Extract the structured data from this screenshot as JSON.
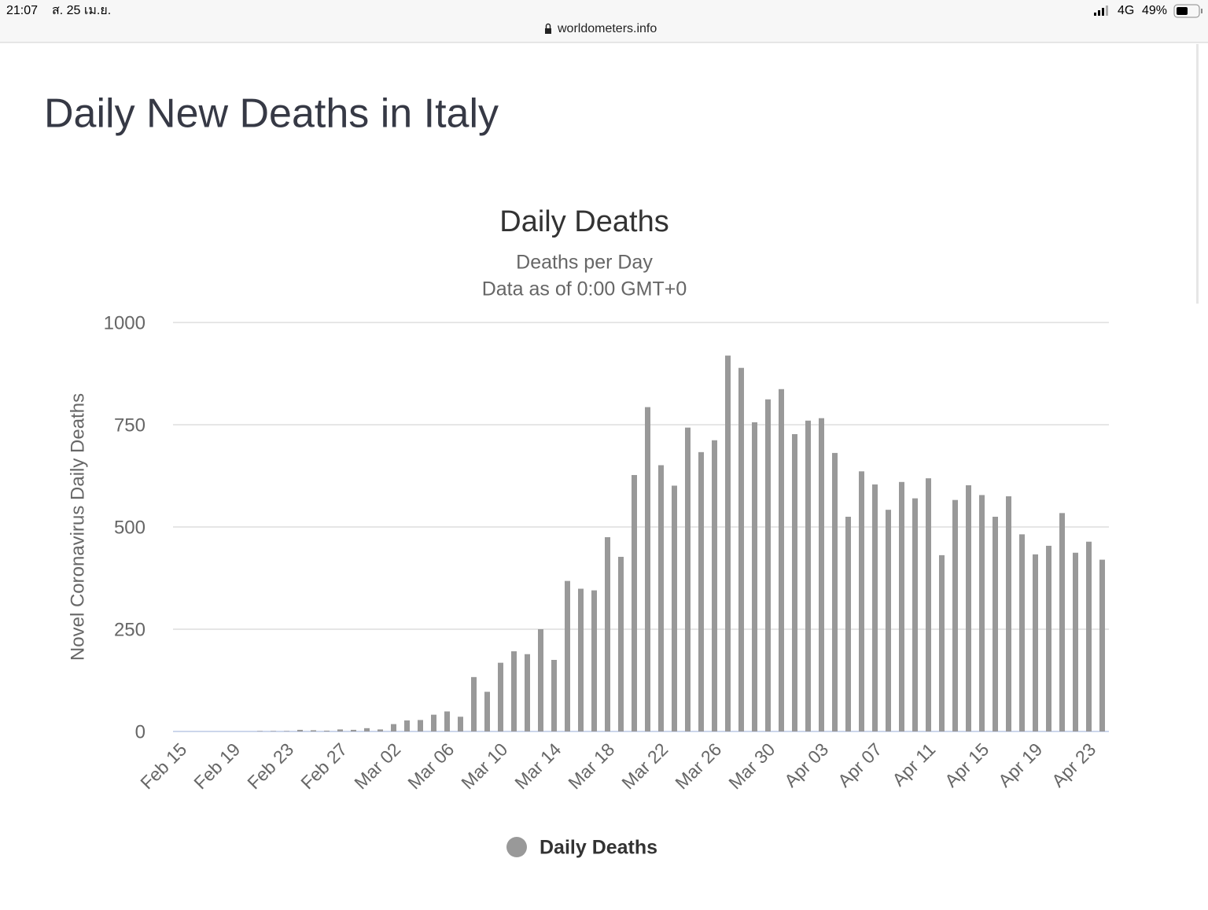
{
  "status_bar": {
    "time": "21:07",
    "date": "ส. 25 เม.ย.",
    "url": "worldometers.info",
    "network": "4G",
    "battery": "49%"
  },
  "page": {
    "title": "Daily New Deaths in Italy"
  },
  "chart_data": {
    "type": "bar",
    "title": "Daily Deaths",
    "subtitle": [
      "Deaths per Day",
      "Data as of 0:00 GMT+0"
    ],
    "y_axis_label": "Novel Coronavirus Daily Deaths",
    "categories": [
      "Feb 15",
      null,
      null,
      null,
      "Feb 19",
      null,
      null,
      null,
      "Feb 23",
      null,
      null,
      null,
      "Feb 27",
      null,
      null,
      null,
      "Mar 02",
      null,
      null,
      null,
      "Mar 06",
      null,
      null,
      null,
      "Mar 10",
      null,
      null,
      null,
      "Mar 14",
      null,
      null,
      null,
      "Mar 18",
      null,
      null,
      null,
      "Mar 22",
      null,
      null,
      null,
      "Mar 26",
      null,
      null,
      null,
      "Mar 30",
      null,
      null,
      null,
      "Apr 03",
      null,
      null,
      null,
      "Apr 07",
      null,
      null,
      null,
      "Apr 11",
      null,
      null,
      null,
      "Apr 15",
      null,
      null,
      null,
      "Apr 19",
      null,
      null,
      null,
      "Apr 23",
      null
    ],
    "series": [
      {
        "name": "Daily Deaths",
        "color": "#999999",
        "values": [
          0,
          0,
          0,
          0,
          0,
          0,
          1,
          1,
          1,
          4,
          3,
          2,
          5,
          4,
          8,
          5,
          18,
          27,
          28,
          41,
          49,
          36,
          133,
          97,
          168,
          196,
          189,
          250,
          175,
          368,
          349,
          345,
          475,
          427,
          627,
          793,
          651,
          601,
          743,
          683,
          712,
          919,
          889,
          756,
          812,
          837,
          727,
          760,
          766,
          681,
          525,
          636,
          604,
          542,
          610,
          570,
          619,
          431,
          566,
          602,
          578,
          525,
          575,
          482,
          433,
          454,
          534,
          437,
          464,
          420
        ]
      }
    ],
    "ylim": [
      0,
      1000
    ],
    "yticks": [
      0,
      250,
      500,
      750,
      1000
    ],
    "grid": true
  }
}
